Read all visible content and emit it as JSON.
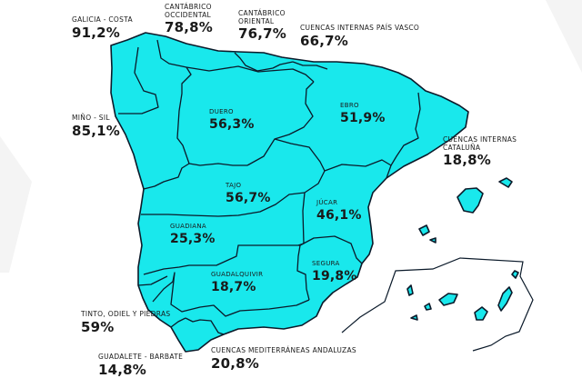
{
  "colors": {
    "land": "#19e8ec",
    "border": "#0b1a2a",
    "text": "#1a1a1a",
    "background": "#ffffff",
    "decor": "#f3f3f3"
  },
  "basins": {
    "galicia_costa": {
      "name": "GALICIA - COSTA",
      "value": "91,2%"
    },
    "cantabrico_occidental": {
      "name_line1": "CANTÁBRICO",
      "name_line2": "OCCIDENTAL",
      "value": "78,8%"
    },
    "cantabrico_oriental": {
      "name_line1": "CANTÁBRICO",
      "name_line2": "ORIENTAL",
      "value": "76,7%"
    },
    "pais_vasco": {
      "name": "CUENCAS INTERNAS PAÍS VASCO",
      "value": "66,7%"
    },
    "mino_sil": {
      "name": "MIÑO - SIL",
      "value": "85,1%"
    },
    "duero": {
      "name": "DUERO",
      "value": "56,3%"
    },
    "ebro": {
      "name": "EBRO",
      "value": "51,9%"
    },
    "cataluna": {
      "name_line1": "CUENCAS INTERNAS",
      "name_line2": "CATALUÑA",
      "value": "18,8%"
    },
    "tajo": {
      "name": "TAJO",
      "value": "56,7%"
    },
    "jucar": {
      "name": "JÚCAR",
      "value": "46,1%"
    },
    "guadiana": {
      "name": "GUADIANA",
      "value": "25,3%"
    },
    "segura": {
      "name": "SEGURA",
      "value": "19,8%"
    },
    "guadalquivir": {
      "name": "GUADALQUIVIR",
      "value": "18,7%"
    },
    "tinto_odiel": {
      "name": "TINTO, ODIEL Y PIEDRAS",
      "value": "59%"
    },
    "guadalete_barbate": {
      "name": "GUADALETE - BARBATE",
      "value": "14,8%"
    },
    "mediterraneas_andaluzas": {
      "name": "CUENCAS MEDITERRÁNEAS ANDALUZAS",
      "value": "20,8%"
    }
  }
}
